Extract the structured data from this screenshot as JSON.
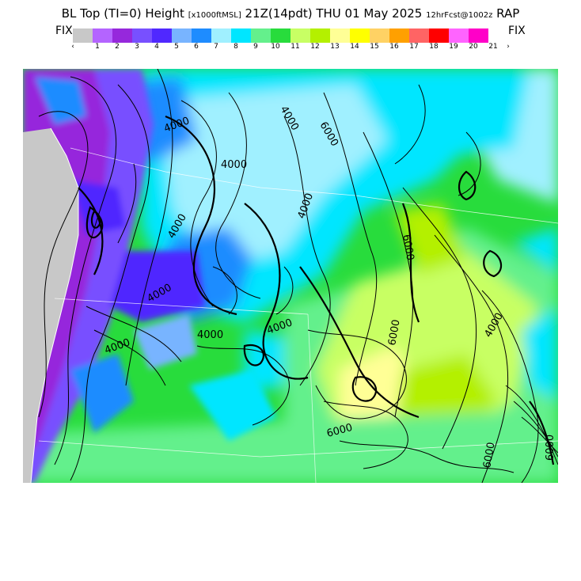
{
  "header": {
    "title_main": "BL Top (TI=0) Height",
    "title_units": "[x1000ftMSL]",
    "title_time": "21Z(14pdt) THU 01 May 2025",
    "title_run": "12hrFcst@1002z",
    "title_model": "RAP"
  },
  "legend": {
    "fix_left": "FIX",
    "fix_right": "FIX",
    "arrow_left": "‹",
    "arrow_right": "›",
    "ticks": [
      "1",
      "2",
      "3",
      "4",
      "5",
      "6",
      "7",
      "8",
      "9",
      "10",
      "11",
      "12",
      "13",
      "14",
      "15",
      "16",
      "17",
      "18",
      "19",
      "20",
      "21"
    ],
    "colors": [
      "#c8c8c8",
      "#b464ff",
      "#9628dc",
      "#7850ff",
      "#5028ff",
      "#78b4ff",
      "#1e8cff",
      "#a0f0ff",
      "#00e6ff",
      "#64f08c",
      "#28dc3c",
      "#c8ff64",
      "#b4f000",
      "#ffff96",
      "#ffff00",
      "#ffd264",
      "#ffa000",
      "#ff6464",
      "#ff0000",
      "#ff64ff",
      "#ff00c8"
    ]
  },
  "map": {
    "contour_labels": [
      {
        "text": "4000"
      },
      {
        "text": "4000"
      },
      {
        "text": "4000"
      },
      {
        "text": "4000"
      },
      {
        "text": "4000"
      },
      {
        "text": "4000"
      },
      {
        "text": "4000"
      },
      {
        "text": "4000"
      },
      {
        "text": "4000"
      },
      {
        "text": "4000"
      },
      {
        "text": "6000"
      },
      {
        "text": "6000"
      },
      {
        "text": "6000"
      },
      {
        "text": "6000"
      },
      {
        "text": "6000"
      },
      {
        "text": "6000"
      }
    ]
  }
}
